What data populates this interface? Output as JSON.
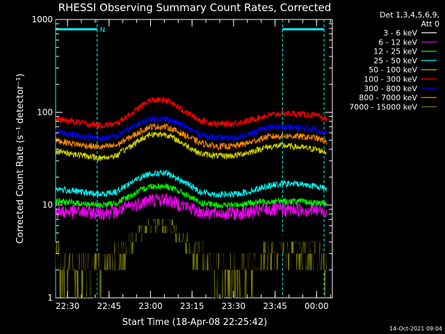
{
  "chart_data": {
    "type": "line",
    "title": "RHESSI Observing Summary Count Rates, Corrected",
    "xlabel": "Start Time (18-Apr-08 22:25:42)",
    "ylabel": "Corrected Count Rate (s⁻¹ detector⁻¹)",
    "y_scale": "log",
    "ylim": [
      1,
      1000
    ],
    "xlim_minutes": [
      0,
      100
    ],
    "x_tick_labels": [
      "22:30",
      "22:45",
      "23:00",
      "23:15",
      "23:30",
      "23:45",
      "00:00"
    ],
    "x_tick_minutes": [
      4.3,
      19.3,
      34.3,
      49.3,
      64.3,
      79.3,
      94.3
    ],
    "y_tick_labels": [
      "1",
      "10",
      "100",
      "1000"
    ],
    "y_tick_values": [
      1,
      10,
      100,
      1000
    ],
    "legend_header": [
      "Det 1,3,4,5,6,9,",
      "Att 0"
    ],
    "legend_position": "right-outside",
    "series": [
      {
        "name": "3 - 6 keV",
        "color": "#000000"
      },
      {
        "name": "6 - 12 keV",
        "color": "#ff00ff"
      },
      {
        "name": "12 - 25 keV",
        "color": "#00ff00"
      },
      {
        "name": "25 - 50 keV",
        "color": "#00ffff"
      },
      {
        "name": "50 - 100 keV",
        "color": "#d4d400"
      },
      {
        "name": "100 - 300 keV",
        "color": "#ff0000"
      },
      {
        "name": "300 - 800 keV",
        "color": "#0000ff"
      },
      {
        "name": "800 - 7000 keV",
        "color": "#ff8c00"
      },
      {
        "name": "7000 - 15000 keV",
        "color": "#7a7a00"
      }
    ],
    "series_approx_points": {
      "minutes": [
        0,
        8,
        16,
        22,
        28,
        34,
        40,
        46,
        52,
        58,
        64,
        70,
        76,
        82,
        88,
        94,
        98
      ],
      "100 - 300 keV": [
        85,
        78,
        72,
        75,
        100,
        135,
        135,
        105,
        82,
        75,
        75,
        82,
        92,
        98,
        96,
        92,
        84
      ],
      "300 - 800 keV": [
        62,
        56,
        52,
        55,
        70,
        85,
        85,
        72,
        58,
        53,
        53,
        58,
        68,
        70,
        68,
        66,
        60
      ],
      "800 - 7000 keV": [
        50,
        45,
        42,
        44,
        56,
        70,
        70,
        58,
        47,
        43,
        43,
        47,
        54,
        56,
        55,
        53,
        48
      ],
      "50 - 100 keV": [
        38,
        35,
        32,
        34,
        45,
        58,
        58,
        46,
        36,
        34,
        34,
        37,
        42,
        44,
        42,
        40,
        37
      ],
      "25 - 50 keV": [
        15,
        14,
        13,
        14,
        18,
        22,
        22,
        18,
        14,
        13,
        13,
        14,
        16,
        17,
        17,
        16,
        15
      ],
      "12 - 25 keV": [
        11,
        10.5,
        10,
        10.5,
        13,
        16,
        16,
        13.5,
        10.5,
        10,
        10,
        10.5,
        11,
        11,
        11,
        10.5,
        10.5
      ],
      "6 - 12 keV": [
        8.5,
        8.5,
        8.3,
        8.5,
        10,
        11.5,
        11.5,
        10,
        8.5,
        8.2,
        8.2,
        8.4,
        9,
        9,
        9,
        8.8,
        8.6
      ],
      "3 - 6 keV": [
        2.6,
        2.2,
        2.3,
        2.8,
        4.5,
        6.5,
        6.2,
        4.5,
        3.0,
        2.1,
        2.0,
        2.4,
        3.2,
        3.5,
        3.3,
        3.0,
        2.6
      ],
      "7000 - 15000 keV": [
        2.5,
        2.1,
        2.2,
        2.7,
        4.3,
        6.4,
        6.1,
        4.4,
        2.9,
        2.0,
        1.9,
        2.3,
        3.1,
        3.4,
        3.2,
        2.9,
        2.5
      ]
    },
    "night_intervals_minutes": [
      [
        0,
        15
      ],
      [
        82,
        97
      ]
    ],
    "night_label": "N",
    "axis_color": "#ffffff",
    "night_color": "#00ffff"
  },
  "timestamp": "14-Oct-2021 09:04"
}
